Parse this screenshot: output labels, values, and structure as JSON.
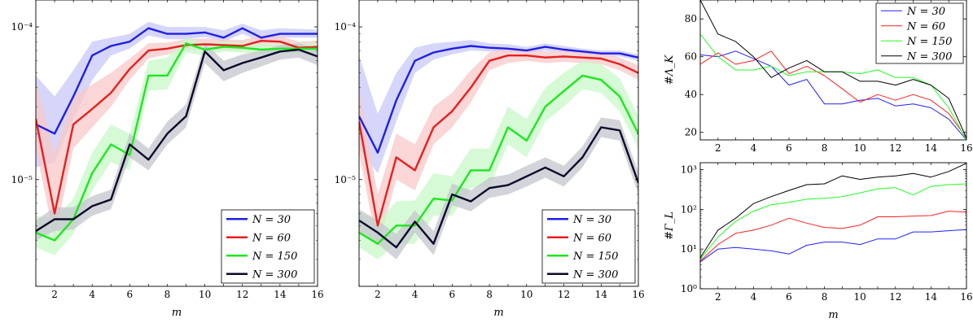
{
  "chart_data": [
    {
      "type": "line",
      "yscale": "log",
      "ylim": [
        2e-06,
        0.00015
      ],
      "xlim": [
        1,
        16
      ],
      "xlabel": "m",
      "ylabel": "",
      "xticks": [
        2,
        4,
        6,
        8,
        10,
        12,
        14,
        16
      ],
      "yticks": [
        {
          "value": 1e-05,
          "label": "10⁻⁵"
        },
        {
          "value": 0.0001,
          "label": "10⁻⁴"
        }
      ],
      "legend": "bottom-right",
      "shaded_bands": true,
      "x": [
        1,
        2,
        3,
        4,
        5,
        6,
        7,
        8,
        9,
        10,
        11,
        12,
        13,
        14,
        15,
        16
      ],
      "series": [
        {
          "name": "N = 30",
          "color": "#1f1fe6",
          "values": [
            2.3e-05,
            2e-05,
            3.5e-05,
            6.5e-05,
            7.5e-05,
            8e-05,
            9.8e-05,
            9e-05,
            9e-05,
            9.2e-05,
            8.5e-05,
            9.8e-05,
            8.5e-05,
            9e-05,
            9e-05,
            9e-05
          ],
          "lower": [
            1.2e-05,
            1.3e-05,
            2.5e-05,
            4.5e-05,
            6.5e-05,
            7.2e-05,
            8.8e-05,
            8.3e-05,
            8.3e-05,
            8.6e-05,
            8e-05,
            9e-05,
            8e-05,
            8.5e-05,
            8.5e-05,
            8.5e-05
          ],
          "upper": [
            4.8e-05,
            3.5e-05,
            5.2e-05,
            8e-05,
            8.5e-05,
            9e-05,
            0.000108,
            0.0001,
            0.0001,
            0.0001,
            9.5e-05,
            0.000105,
            9.5e-05,
            9.8e-05,
            9.7e-05,
            9.6e-05
          ]
        },
        {
          "name": "N = 60",
          "color": "#e61f1f",
          "values": [
            2.5e-05,
            6e-06,
            2.3e-05,
            2.9e-05,
            3.7e-05,
            5.3e-05,
            7e-05,
            7.2e-05,
            7.6e-05,
            7.7e-05,
            7.6e-05,
            7.5e-05,
            8.1e-05,
            8e-05,
            7.3e-05,
            7.4e-05
          ],
          "lower": [
            1.6e-05,
            4e-06,
            1.6e-05,
            2.2e-05,
            3e-05,
            4.5e-05,
            6.2e-05,
            6.6e-05,
            7e-05,
            7.1e-05,
            7e-05,
            7e-05,
            7.4e-05,
            7.3e-05,
            6.7e-05,
            6.8e-05
          ],
          "upper": [
            4.5e-05,
            1.5e-05,
            3.5e-05,
            4.2e-05,
            5e-05,
            6.2e-05,
            7.8e-05,
            7.9e-05,
            8.3e-05,
            8.4e-05,
            8.3e-05,
            8.2e-05,
            8.8e-05,
            8.7e-05,
            8e-05,
            8.1e-05
          ]
        },
        {
          "name": "N = 150",
          "color": "#1fe61f",
          "values": [
            4.5e-06,
            4e-06,
            5.5e-06,
            1.1e-05,
            1.7e-05,
            1.45e-05,
            4.8e-05,
            4.8e-05,
            7.8e-05,
            7.1e-05,
            7.4e-05,
            7.3e-05,
            7.1e-05,
            7.2e-05,
            7.2e-05,
            7.2e-05
          ],
          "lower": [
            3.6e-06,
            3.2e-06,
            4.4e-06,
            8.5e-06,
            1.3e-05,
            1.15e-05,
            3.8e-05,
            3.9e-05,
            6.8e-05,
            6.5e-05,
            6.9e-05,
            6.8e-05,
            6.6e-05,
            6.7e-05,
            6.7e-05,
            6.7e-05
          ],
          "upper": [
            5.8e-06,
            5.5e-06,
            7.5e-06,
            1.5e-05,
            2.3e-05,
            2e-05,
            6e-05,
            6.3e-05,
            8.5e-05,
            7.8e-05,
            8e-05,
            7.9e-05,
            7.7e-05,
            7.8e-05,
            7.8e-05,
            7.8e-05
          ]
        },
        {
          "name": "N = 300",
          "color": "#0a0a2a",
          "values": [
            4.6e-06,
            5.5e-06,
            5.5e-06,
            6.7e-06,
            7.4e-06,
            1.7e-05,
            1.35e-05,
            2e-05,
            2.6e-05,
            6.9e-05,
            5.2e-05,
            5.8e-05,
            6.3e-05,
            6.9e-05,
            7.1e-05,
            6.4e-05
          ],
          "lower": [
            4e-06,
            4.6e-06,
            4.7e-06,
            5.8e-06,
            6.4e-06,
            1.4e-05,
            1.15e-05,
            1.7e-05,
            2.2e-05,
            5.8e-05,
            4.4e-05,
            5e-05,
            5.5e-05,
            6.1e-05,
            6.3e-05,
            5.6e-05
          ],
          "upper": [
            5.4e-06,
            6.6e-06,
            6.6e-06,
            7.8e-06,
            8.6e-06,
            2e-05,
            1.6e-05,
            2.4e-05,
            3.1e-05,
            7.8e-05,
            6e-05,
            6.6e-05,
            7e-05,
            7.6e-05,
            7.8e-05,
            7.2e-05
          ]
        }
      ]
    },
    {
      "type": "line",
      "yscale": "log",
      "ylim": [
        2e-06,
        0.00015
      ],
      "xlim": [
        1,
        16
      ],
      "xlabel": "m",
      "ylabel": "",
      "xticks": [
        2,
        4,
        6,
        8,
        10,
        12,
        14,
        16
      ],
      "yticks": [
        {
          "value": 1e-05,
          "label": "10⁻⁵"
        },
        {
          "value": 0.0001,
          "label": "10⁻⁴"
        }
      ],
      "legend": "bottom-right",
      "shaded_bands": true,
      "x": [
        1,
        2,
        3,
        4,
        5,
        6,
        7,
        8,
        9,
        10,
        11,
        12,
        13,
        14,
        15,
        16
      ],
      "series": [
        {
          "name": "N = 30",
          "color": "#1f1fe6",
          "values": [
            2.6e-05,
            1.5e-05,
            3.3e-05,
            6e-05,
            6.8e-05,
            7.2e-05,
            7.5e-05,
            7.3e-05,
            7.2e-05,
            7e-05,
            7.4e-05,
            7.1e-05,
            6.9e-05,
            6.7e-05,
            6.7e-05,
            6.3e-05
          ],
          "lower": [
            1.6e-05,
            1.1e-05,
            2.4e-05,
            5e-05,
            6.1e-05,
            6.6e-05,
            7e-05,
            6.9e-05,
            6.8e-05,
            6.7e-05,
            7e-05,
            6.8e-05,
            6.6e-05,
            6.4e-05,
            6.4e-05,
            6e-05
          ],
          "upper": [
            6.5e-05,
            2.7e-05,
            5e-05,
            7.3e-05,
            7.8e-05,
            8e-05,
            8.2e-05,
            7.8e-05,
            7.7e-05,
            7.4e-05,
            7.8e-05,
            7.5e-05,
            7.2e-05,
            7e-05,
            7e-05,
            6.6e-05
          ],
          "note_upper_first": "clipped"
        },
        {
          "name": "N = 60",
          "color": "#e61f1f",
          "values": [
            2.4e-05,
            5e-06,
            1.4e-05,
            1.15e-05,
            2.2e-05,
            2.8e-05,
            4e-05,
            6e-05,
            6.5e-05,
            6.5e-05,
            6.3e-05,
            6.4e-05,
            6.3e-05,
            6.2e-05,
            5.7e-05,
            5e-05
          ],
          "lower": [
            1.5e-05,
            3.5e-06,
            1e-05,
            8.5e-06,
            1.7e-05,
            2.2e-05,
            3.2e-05,
            5.2e-05,
            5.8e-05,
            6e-05,
            5.8e-05,
            5.9e-05,
            5.8e-05,
            5.7e-05,
            5.2e-05,
            4.5e-05
          ],
          "upper": [
            4e-05,
            8e-06,
            2e-05,
            1.7e-05,
            3e-05,
            3.7e-05,
            5.2e-05,
            6.8e-05,
            7.2e-05,
            7.1e-05,
            6.9e-05,
            7e-05,
            6.9e-05,
            6.8e-05,
            6.3e-05,
            5.6e-05
          ]
        },
        {
          "name": "N = 150",
          "color": "#1fe61f",
          "values": [
            4.5e-06,
            3.8e-06,
            5e-06,
            5e-06,
            7.5e-06,
            7.3e-06,
            1.15e-05,
            1.15e-05,
            2.2e-05,
            1.8e-05,
            3e-05,
            3.8e-05,
            4.8e-05,
            4.5e-05,
            3.5e-05,
            2e-05
          ],
          "lower": [
            3.6e-06,
            3e-06,
            3.8e-06,
            3.8e-06,
            5.8e-06,
            5.8e-06,
            8.8e-06,
            9e-06,
            1.7e-05,
            1.4e-05,
            2.4e-05,
            3e-05,
            3.9e-05,
            3.7e-05,
            2.8e-05,
            1.6e-05
          ],
          "upper": [
            6.2e-06,
            5.2e-06,
            7.2e-06,
            7.3e-06,
            1.1e-05,
            1.05e-05,
            1.6e-05,
            1.6e-05,
            3e-05,
            2.5e-05,
            4e-05,
            5e-05,
            6e-05,
            5.7e-05,
            4.6e-05,
            2.6e-05
          ]
        },
        {
          "name": "N = 300",
          "color": "#0a0a2a",
          "values": [
            5.4e-06,
            4.5e-06,
            3.6e-06,
            5.3e-06,
            3.8e-06,
            8e-06,
            7.2e-06,
            8.8e-06,
            9.2e-06,
            1.05e-05,
            1.2e-05,
            1.05e-05,
            1.4e-05,
            2.2e-05,
            2.1e-05,
            9.5e-06
          ],
          "lower": [
            4.6e-06,
            3.8e-06,
            3e-06,
            4.5e-06,
            3.2e-06,
            6.8e-06,
            6.2e-06,
            7.6e-06,
            8e-06,
            9e-06,
            1.03e-05,
            9e-06,
            1.2e-05,
            1.9e-05,
            1.8e-05,
            8e-06
          ],
          "upper": [
            6.4e-06,
            5.4e-06,
            4.4e-06,
            6.3e-06,
            4.6e-06,
            9.4e-06,
            8.5e-06,
            1.03e-05,
            1.08e-05,
            1.23e-05,
            1.4e-05,
            1.23e-05,
            1.65e-05,
            2.55e-05,
            2.45e-05,
            1.12e-05
          ]
        }
      ]
    },
    {
      "type": "line",
      "yscale": "linear",
      "ylim": [
        16,
        90
      ],
      "xlim": [
        1,
        16
      ],
      "xlabel": "",
      "ylabel": "#Λ_K",
      "xticks": [
        2,
        4,
        6,
        8,
        10,
        12,
        14,
        16
      ],
      "yticks": [
        {
          "value": 20,
          "label": "20"
        },
        {
          "value": 40,
          "label": "40"
        },
        {
          "value": 60,
          "label": "60"
        },
        {
          "value": 80,
          "label": "80"
        }
      ],
      "legend": "top-right",
      "x": [
        1,
        2,
        3,
        4,
        5,
        6,
        7,
        8,
        9,
        10,
        11,
        12,
        13,
        14,
        15,
        16
      ],
      "series": [
        {
          "name": "N = 30",
          "color": "#2020ff",
          "values": [
            61,
            60,
            63,
            59,
            55,
            45,
            48,
            35,
            35,
            37,
            38,
            34,
            35,
            33,
            27,
            16
          ]
        },
        {
          "name": "N = 60",
          "color": "#ff2020",
          "values": [
            56,
            62,
            56,
            58,
            63,
            51,
            55,
            50,
            43,
            36,
            40,
            37,
            40,
            37,
            30,
            17
          ]
        },
        {
          "name": "N = 150",
          "color": "#20ff20",
          "values": [
            72,
            60,
            53,
            53,
            55,
            50,
            52,
            52,
            52,
            51,
            53,
            49,
            49,
            45,
            33,
            16
          ]
        },
        {
          "name": "N = 300",
          "color": "#000000",
          "values": [
            90,
            72,
            68,
            60,
            49,
            54,
            58,
            52,
            52,
            47,
            47,
            45,
            48,
            45,
            38,
            17
          ]
        }
      ]
    },
    {
      "type": "line",
      "yscale": "log",
      "ylim": [
        1,
        1500
      ],
      "xlim": [
        1,
        16
      ],
      "xlabel": "m",
      "ylabel": "#Γ_L",
      "xticks": [
        2,
        4,
        6,
        8,
        10,
        12,
        14,
        16
      ],
      "yticks": [
        {
          "value": 1,
          "label": "10⁰"
        },
        {
          "value": 10,
          "label": "10¹"
        },
        {
          "value": 100,
          "label": "10²"
        },
        {
          "value": 1000,
          "label": "10³"
        }
      ],
      "legend": "none",
      "x": [
        1,
        2,
        3,
        4,
        5,
        6,
        7,
        8,
        9,
        10,
        11,
        12,
        13,
        14,
        15,
        16
      ],
      "series": [
        {
          "name": "N = 30",
          "color": "#2020ff",
          "values": [
            4.8,
            10,
            11,
            10,
            9,
            7.5,
            12.5,
            15,
            15,
            13,
            18,
            18,
            27,
            27,
            29,
            31
          ]
        },
        {
          "name": "N = 60",
          "color": "#ff2020",
          "values": [
            5,
            13,
            25,
            30,
            40,
            60,
            45,
            35,
            33,
            40,
            65,
            65,
            68,
            70,
            90,
            85
          ]
        },
        {
          "name": "N = 150",
          "color": "#20ff20",
          "values": [
            5.5,
            20,
            50,
            90,
            130,
            150,
            180,
            190,
            210,
            260,
            330,
            350,
            230,
            380,
            420,
            440
          ]
        },
        {
          "name": "N = 300",
          "color": "#000000",
          "values": [
            6,
            30,
            60,
            140,
            210,
            300,
            420,
            440,
            700,
            570,
            650,
            700,
            800,
            650,
            900,
            1450
          ]
        }
      ]
    }
  ]
}
